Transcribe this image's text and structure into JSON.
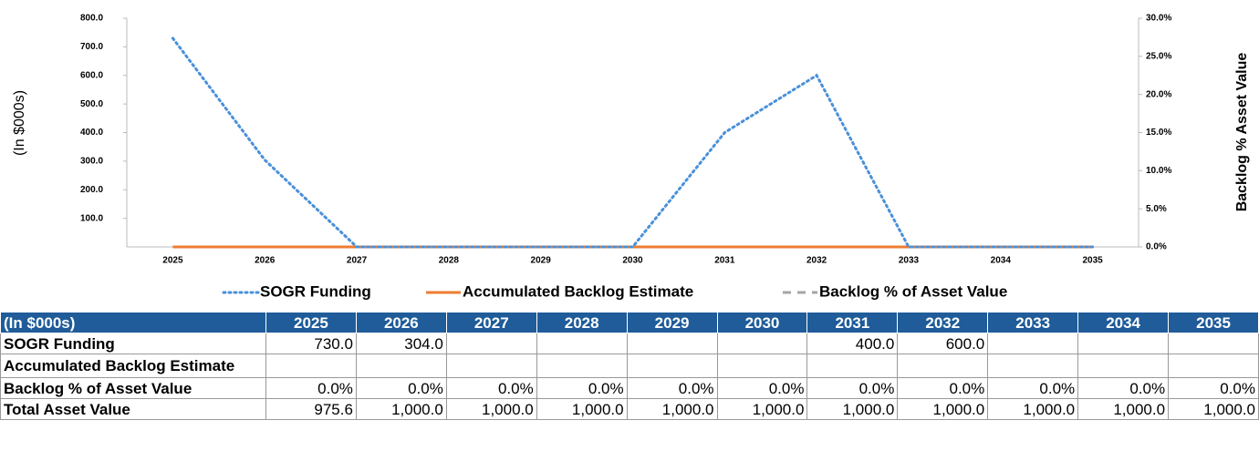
{
  "chart_data": {
    "type": "line",
    "ylabel": "(In $000s)",
    "y2label": "Backlog % Asset Value",
    "categories": [
      "2025",
      "2026",
      "2027",
      "2028",
      "2029",
      "2030",
      "2031",
      "2032",
      "2033",
      "2034",
      "2035"
    ],
    "series": [
      {
        "name": "SOGR Funding",
        "color": "#4a90d9",
        "style": "dotted",
        "values": [
          730,
          304,
          0,
          0,
          0,
          0,
          400,
          600,
          0,
          0,
          0
        ]
      },
      {
        "name": "Accumulated Backlog Estimate",
        "color": "#ed7d31",
        "style": "solid",
        "values": [
          0,
          0,
          0,
          0,
          0,
          0,
          0,
          0,
          0,
          0,
          0
        ]
      },
      {
        "name": "Backlog % of Asset Value",
        "color": "#a5a5a5",
        "style": "dashed",
        "axis": "y2",
        "values": [
          0,
          0,
          0,
          0,
          0,
          0,
          0,
          0,
          0,
          0,
          0
        ]
      }
    ],
    "ylim": [
      0,
      800
    ],
    "yticks": [
      {
        "value": 100,
        "label": "100.0"
      },
      {
        "value": 200,
        "label": "200.0"
      },
      {
        "value": 300,
        "label": "300.0"
      },
      {
        "value": 400,
        "label": "400.0"
      },
      {
        "value": 500,
        "label": "500.0"
      },
      {
        "value": 600,
        "label": "600.0"
      },
      {
        "value": 700,
        "label": "700.0"
      },
      {
        "value": 800,
        "label": "800.0"
      }
    ],
    "y2lim": [
      0,
      30
    ],
    "y2ticks": [
      {
        "value": 0,
        "label": "0.0%"
      },
      {
        "value": 5,
        "label": "5.0%"
      },
      {
        "value": 10,
        "label": "10.0%"
      },
      {
        "value": 15,
        "label": "15.0%"
      },
      {
        "value": 20,
        "label": "20.0%"
      },
      {
        "value": 25,
        "label": "25.0%"
      },
      {
        "value": 30,
        "label": "30.0%"
      }
    ],
    "legend": "bottom"
  },
  "table": {
    "header": [
      "(In $000s)",
      "2025",
      "2026",
      "2027",
      "2028",
      "2029",
      "2030",
      "2031",
      "2032",
      "2033",
      "2034",
      "2035"
    ],
    "rows": [
      [
        "SOGR Funding",
        "730.0",
        "304.0",
        null,
        null,
        null,
        null,
        "400.0",
        "600.0",
        null,
        null,
        null
      ],
      [
        "Accumulated Backlog Estimate",
        null,
        null,
        null,
        null,
        null,
        null,
        null,
        null,
        null,
        null,
        null
      ],
      [
        "Backlog % of Asset Value",
        "0.0%",
        "0.0%",
        "0.0%",
        "0.0%",
        "0.0%",
        "0.0%",
        "0.0%",
        "0.0%",
        "0.0%",
        "0.0%",
        "0.0%"
      ],
      [
        "Total Asset Value",
        "975.6",
        "1,000.0",
        "1,000.0",
        "1,000.0",
        "1,000.0",
        "1,000.0",
        "1,000.0",
        "1,000.0",
        "1,000.0",
        "1,000.0",
        "1,000.0"
      ]
    ]
  }
}
